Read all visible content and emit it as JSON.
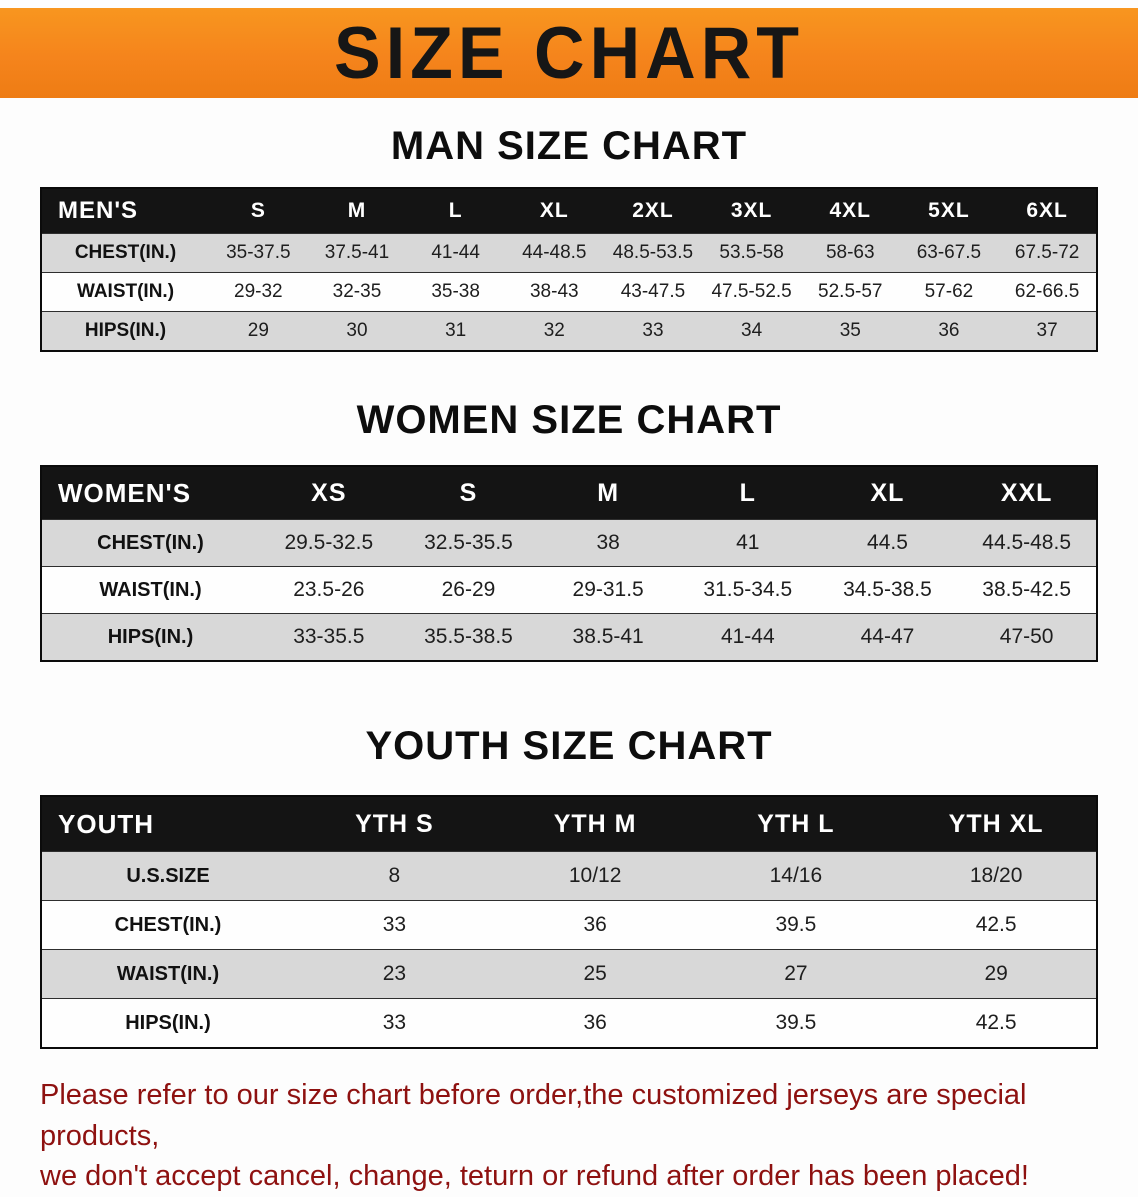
{
  "banner": {
    "title": "SIZE CHART"
  },
  "colors": {
    "banner_orange": "#f5841c",
    "table_header_black": "#141414",
    "row_stripe_gray": "#d8d8d8",
    "notice_red": "#8e1110"
  },
  "sections": [
    {
      "heading": "MAN SIZE CHART",
      "table": {
        "header": [
          "MEN'S",
          "S",
          "M",
          "L",
          "XL",
          "2XL",
          "3XL",
          "4XL",
          "5XL",
          "6XL"
        ],
        "rows": [
          [
            "CHEST(IN.)",
            "35-37.5",
            "37.5-41",
            "41-44",
            "44-48.5",
            "48.5-53.5",
            "53.5-58",
            "58-63",
            "63-67.5",
            "67.5-72"
          ],
          [
            "WAIST(IN.)",
            "29-32",
            "32-35",
            "35-38",
            "38-43",
            "43-47.5",
            "47.5-52.5",
            "52.5-57",
            "57-62",
            "62-66.5"
          ],
          [
            "HIPS(IN.)",
            "29",
            "30",
            "31",
            "32",
            "33",
            "34",
            "35",
            "36",
            "37"
          ]
        ]
      }
    },
    {
      "heading": "WOMEN SIZE CHART",
      "table": {
        "header": [
          "WOMEN'S",
          "XS",
          "S",
          "M",
          "L",
          "XL",
          "XXL"
        ],
        "rows": [
          [
            "CHEST(IN.)",
            "29.5-32.5",
            "32.5-35.5",
            "38",
            "41",
            "44.5",
            "44.5-48.5"
          ],
          [
            "WAIST(IN.)",
            "23.5-26",
            "26-29",
            "29-31.5",
            "31.5-34.5",
            "34.5-38.5",
            "38.5-42.5"
          ],
          [
            "HIPS(IN.)",
            "33-35.5",
            "35.5-38.5",
            "38.5-41",
            "41-44",
            "44-47",
            "47-50"
          ]
        ]
      }
    },
    {
      "heading": "YOUTH SIZE CHART",
      "table": {
        "header": [
          "YOUTH",
          "YTH S",
          "YTH M",
          "YTH L",
          "YTH XL"
        ],
        "rows": [
          [
            "U.S.SIZE",
            "8",
            "10/12",
            "14/16",
            "18/20"
          ],
          [
            "CHEST(IN.)",
            "33",
            "36",
            "39.5",
            "42.5"
          ],
          [
            "WAIST(IN.)",
            "23",
            "25",
            "27",
            "29"
          ],
          [
            "HIPS(IN.)",
            "33",
            "36",
            "39.5",
            "42.5"
          ]
        ]
      }
    }
  ],
  "notice": {
    "line1": "Please refer to our size chart before order,the customized jerseys are special products,",
    "line2": "we don't accept cancel, change, teturn or refund after order has been placed!"
  }
}
